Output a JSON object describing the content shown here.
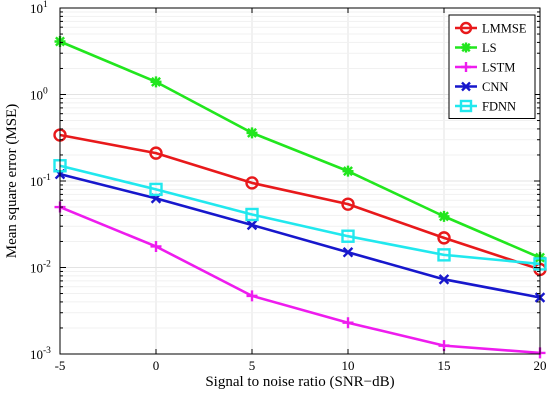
{
  "chart_data": {
    "type": "line",
    "xlabel": "Signal to noise ratio (SNR−dB)",
    "ylabel": "Mean square error (MSE)",
    "x": [
      -5,
      0,
      5,
      10,
      15,
      20
    ],
    "xlim": [
      -5,
      20
    ],
    "ylim": [
      0.001,
      10
    ],
    "yscale": "log",
    "grid": true,
    "legend_position": "top-right",
    "xticks": [
      -5,
      0,
      5,
      10,
      15,
      20
    ],
    "xtick_labels": [
      "-5",
      "0",
      "5",
      "10",
      "15",
      "20"
    ],
    "yticks": [
      {
        "value": 0.001,
        "base": "10",
        "exp": "-3"
      },
      {
        "value": 0.01,
        "base": "10",
        "exp": "-2"
      },
      {
        "value": 0.1,
        "base": "10",
        "exp": "-1"
      },
      {
        "value": 1,
        "base": "10",
        "exp": "0"
      },
      {
        "value": 10,
        "base": "10",
        "exp": "1"
      }
    ],
    "series": [
      {
        "name": "LMMSE",
        "color": "#e8191b",
        "marker": "circle",
        "values": [
          0.34,
          0.21,
          0.095,
          0.054,
          0.022,
          0.0095
        ]
      },
      {
        "name": "LS",
        "color": "#22e61e",
        "marker": "star",
        "values": [
          4.1,
          1.4,
          0.36,
          0.13,
          0.039,
          0.013
        ]
      },
      {
        "name": "LSTM",
        "color": "#ee1cee",
        "marker": "plus",
        "values": [
          0.05,
          0.0175,
          0.0047,
          0.0023,
          0.00125,
          0.00103
        ]
      },
      {
        "name": "CNN",
        "color": "#1717cc",
        "marker": "x",
        "values": [
          0.12,
          0.063,
          0.031,
          0.015,
          0.0073,
          0.0045
        ]
      },
      {
        "name": "FDNN",
        "color": "#21e8ee",
        "marker": "square",
        "values": [
          0.15,
          0.08,
          0.041,
          0.023,
          0.014,
          0.011
        ]
      }
    ]
  }
}
